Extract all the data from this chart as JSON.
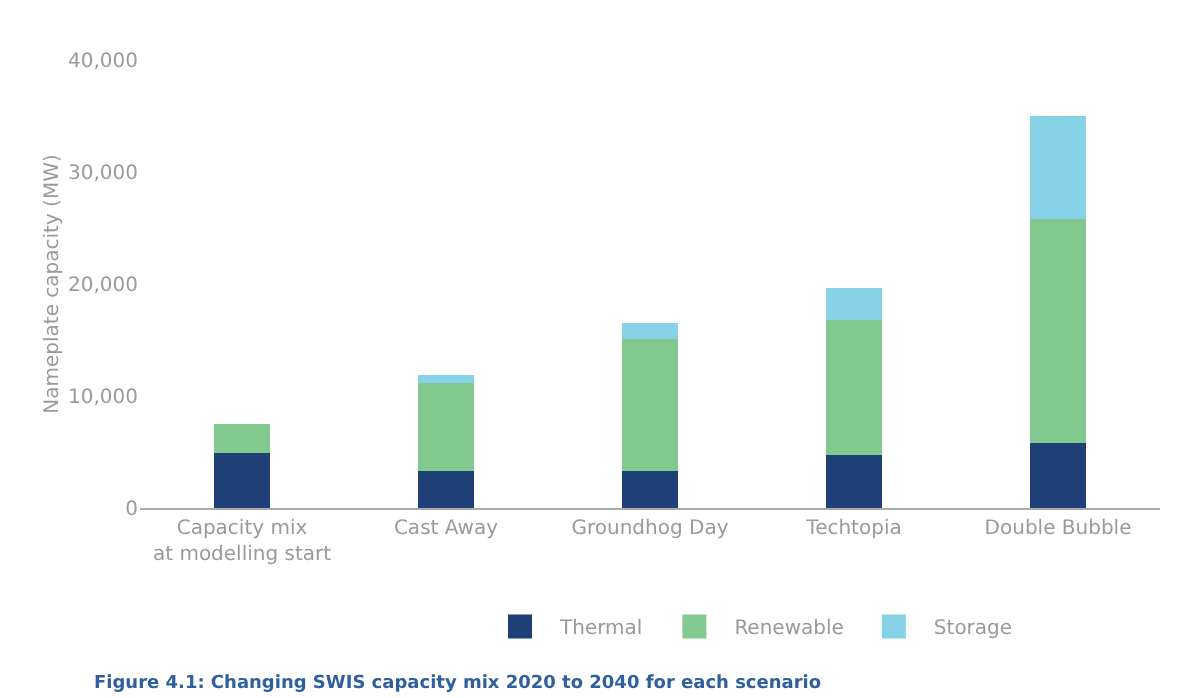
{
  "chart_data": {
    "type": "bar",
    "stacked": true,
    "ylabel": "Nameplate capacity (MW)",
    "categories": [
      "Capacity mix\nat modelling start",
      "Cast Away",
      "Groundhog Day",
      "Techtopia",
      "Double Bubble"
    ],
    "series": [
      {
        "name": "Thermal",
        "color": "#1f3f77",
        "values": [
          4900,
          3300,
          3300,
          4700,
          5800
        ]
      },
      {
        "name": "Renewable",
        "color": "#82c98f",
        "values": [
          2600,
          7900,
          11800,
          12100,
          20000
        ]
      },
      {
        "name": "Storage",
        "color": "#86d3e8",
        "values": [
          0,
          700,
          1400,
          2800,
          9200
        ]
      }
    ],
    "ylim": [
      0,
      40000
    ],
    "yticks": [
      0,
      {
        "value": 10000,
        "label": "10,000"
      },
      {
        "value": 20000,
        "label": "20,000"
      },
      {
        "value": 30000,
        "label": "30,000"
      },
      {
        "value": 40000,
        "label": "40,000"
      }
    ],
    "grid": false,
    "legend": "bottom",
    "annotations": [
      "Figure 4.1: Changing SWIS capacity mix 2020 to 2040 for each scenario"
    ]
  }
}
